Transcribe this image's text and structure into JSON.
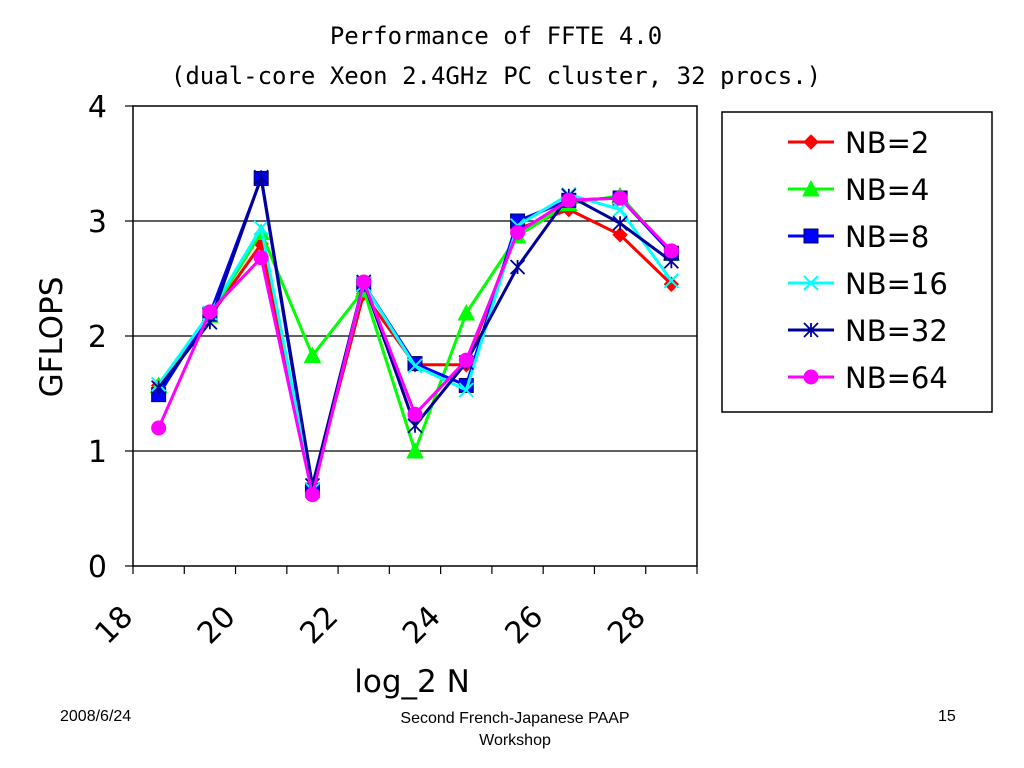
{
  "chart_data": {
    "type": "line",
    "title": "Performance of FFTE 4.0",
    "subtitle": "(dual-core Xeon 2.4GHz PC cluster, 32 procs.)",
    "xlabel": "log_2 N",
    "ylabel": "GFLOPS",
    "x": [
      18,
      19,
      20,
      21,
      22,
      23,
      24,
      25,
      26,
      27,
      28
    ],
    "x_ticks": [
      "18",
      "20",
      "22",
      "24",
      "26",
      "28"
    ],
    "y_ticks": [
      "0",
      "1",
      "2",
      "3",
      "4"
    ],
    "xlim": [
      18,
      29
    ],
    "ylim": [
      0,
      4
    ],
    "grid": "horizontal",
    "legend_position": "right",
    "series": [
      {
        "name": "NB=2",
        "color": "#ff0000",
        "marker": "diamond",
        "values": [
          1.57,
          2.17,
          2.8,
          0.68,
          2.37,
          1.75,
          1.75,
          2.93,
          3.1,
          2.88,
          2.45
        ]
      },
      {
        "name": "NB=4",
        "color": "#00ff00",
        "marker": "triangle",
        "values": [
          1.57,
          2.18,
          2.9,
          1.83,
          2.4,
          1.0,
          2.2,
          2.87,
          3.15,
          3.22,
          2.72
        ]
      },
      {
        "name": "NB=8",
        "color": "#0000ff",
        "marker": "square",
        "values": [
          1.49,
          2.19,
          3.37,
          0.66,
          2.45,
          1.76,
          1.57,
          3.0,
          3.18,
          3.2,
          2.72
        ]
      },
      {
        "name": "NB=16",
        "color": "#00ffff",
        "marker": "x",
        "values": [
          1.58,
          2.2,
          2.94,
          0.66,
          2.45,
          1.74,
          1.53,
          2.96,
          3.23,
          3.1,
          2.48
        ]
      },
      {
        "name": "NB=32",
        "color": "#000099",
        "marker": "star",
        "values": [
          1.55,
          2.12,
          3.38,
          0.7,
          2.47,
          1.22,
          1.77,
          2.6,
          3.22,
          2.98,
          2.65
        ]
      },
      {
        "name": "NB=64",
        "color": "#ff00ff",
        "marker": "circle",
        "values": [
          1.2,
          2.21,
          2.68,
          0.62,
          2.47,
          1.32,
          1.79,
          2.9,
          3.18,
          3.2,
          2.74
        ]
      }
    ]
  },
  "footer": {
    "date": "2008/6/24",
    "event_line1": "Second French-Japanese PAAP",
    "event_line2": "Workshop",
    "page": "15"
  }
}
